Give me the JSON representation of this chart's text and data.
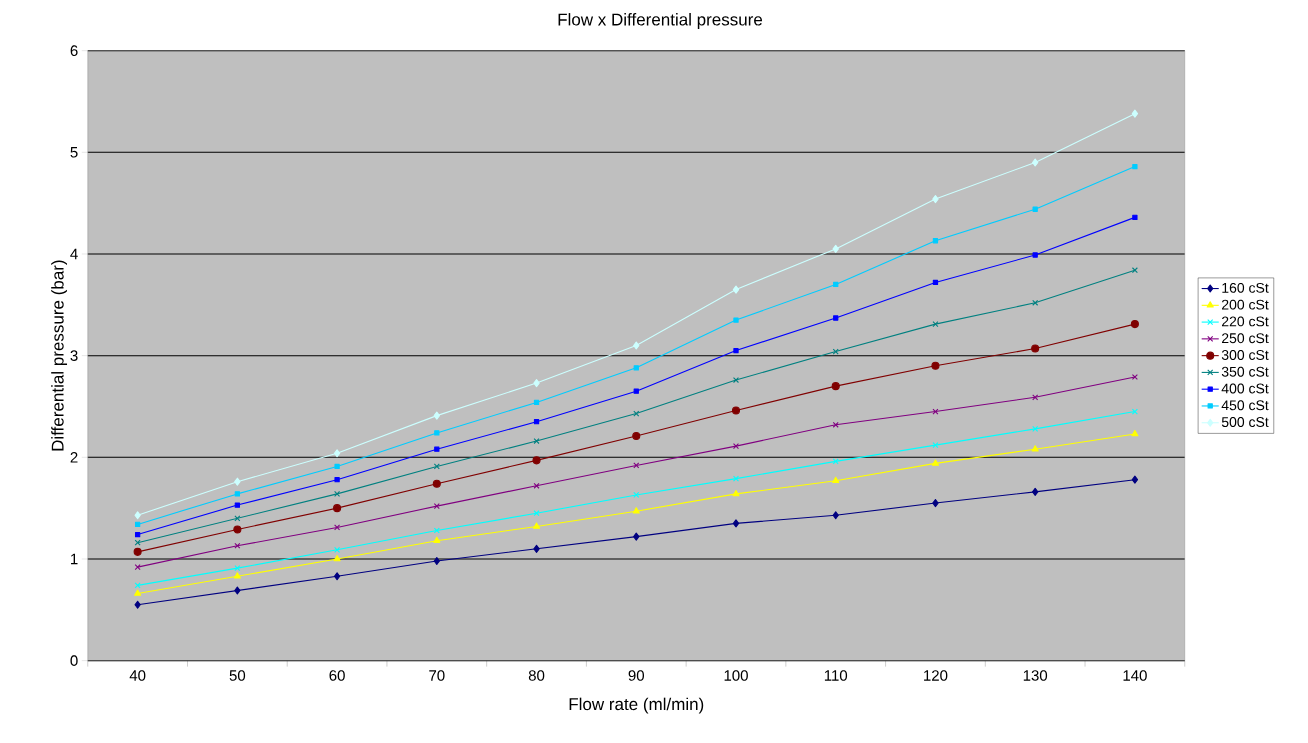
{
  "chart_data": {
    "type": "line",
    "title": "Flow x Differential pressure",
    "xlabel": "Flow rate (ml/min)",
    "ylabel": "Differential pressure (bar)",
    "categories": [
      "40",
      "50",
      "60",
      "70",
      "80",
      "90",
      "100",
      "110",
      "120",
      "130",
      "140"
    ],
    "ylim": [
      0,
      6
    ],
    "yticks": [
      0,
      1,
      2,
      3,
      4,
      5,
      6
    ],
    "grid": "y",
    "legend": "right",
    "series": [
      {
        "name": "160 cSt",
        "color": "#000080",
        "marker": "diamond",
        "values": [
          0.55,
          0.69,
          0.83,
          0.98,
          1.1,
          1.22,
          1.35,
          1.43,
          1.55,
          1.66,
          1.78
        ]
      },
      {
        "name": "200 cSt",
        "color": "#ffff00",
        "marker": "triangle",
        "values": [
          0.66,
          0.83,
          1.0,
          1.18,
          1.32,
          1.47,
          1.64,
          1.77,
          1.94,
          2.08,
          2.23
        ]
      },
      {
        "name": "220 cSt",
        "color": "#00ffff",
        "marker": "cross",
        "values": [
          0.74,
          0.91,
          1.09,
          1.28,
          1.45,
          1.63,
          1.79,
          1.96,
          2.12,
          2.28,
          2.45
        ]
      },
      {
        "name": "250 cSt",
        "color": "#800080",
        "marker": "cross",
        "values": [
          0.92,
          1.13,
          1.31,
          1.52,
          1.72,
          1.92,
          2.11,
          2.32,
          2.45,
          2.59,
          2.79
        ]
      },
      {
        "name": "300 cSt",
        "color": "#800000",
        "marker": "circle",
        "values": [
          1.07,
          1.29,
          1.5,
          1.74,
          1.97,
          2.21,
          2.46,
          2.7,
          2.9,
          3.07,
          3.31
        ]
      },
      {
        "name": "350 cSt",
        "color": "#008080",
        "marker": "cross",
        "values": [
          1.16,
          1.4,
          1.64,
          1.91,
          2.16,
          2.43,
          2.76,
          3.04,
          3.31,
          3.52,
          3.84
        ]
      },
      {
        "name": "400 cSt",
        "color": "#0000ff",
        "marker": "square",
        "values": [
          1.24,
          1.53,
          1.78,
          2.08,
          2.35,
          2.65,
          3.05,
          3.37,
          3.72,
          3.99,
          4.36
        ]
      },
      {
        "name": "450 cSt",
        "color": "#00ccff",
        "marker": "square",
        "values": [
          1.34,
          1.64,
          1.91,
          2.24,
          2.54,
          2.88,
          3.35,
          3.7,
          4.13,
          4.44,
          4.86
        ]
      },
      {
        "name": "500 cSt",
        "color": "#ccffff",
        "marker": "diamond",
        "values": [
          1.43,
          1.76,
          2.04,
          2.41,
          2.73,
          3.1,
          3.65,
          4.05,
          4.54,
          4.9,
          5.38
        ]
      }
    ]
  }
}
